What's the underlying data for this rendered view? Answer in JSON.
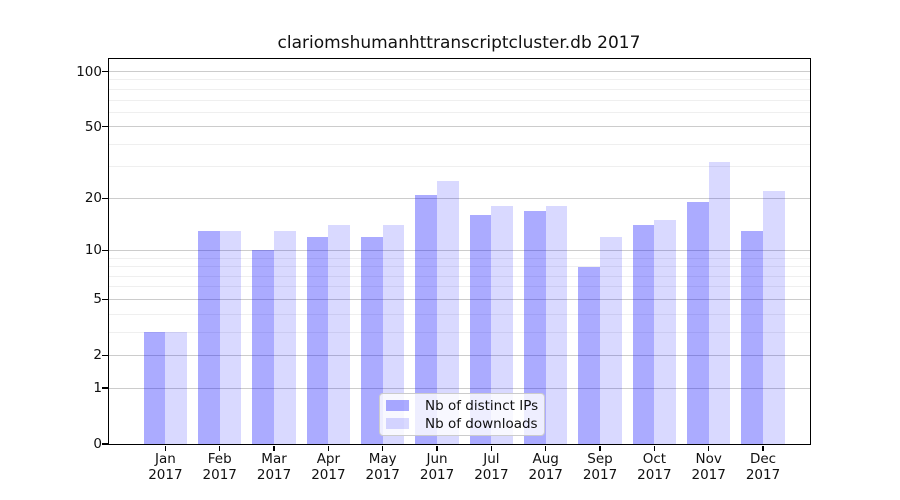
{
  "title": "clariomshumanhttranscriptcluster.db 2017",
  "chart_data": {
    "type": "bar",
    "title": "clariomshumanhttranscriptcluster.db 2017",
    "categories": [
      "Jan 2017",
      "Feb 2017",
      "Mar 2017",
      "Apr 2017",
      "May 2017",
      "Jun 2017",
      "Jul 2017",
      "Aug 2017",
      "Sep 2017",
      "Oct 2017",
      "Nov 2017",
      "Dec 2017"
    ],
    "series": [
      {
        "name": "Nb of distinct IPs",
        "color": "rgba(0,0,255,0.33)",
        "values": [
          3,
          13,
          10,
          12,
          12,
          21,
          16,
          17,
          8,
          14,
          19,
          13
        ]
      },
      {
        "name": "Nb of downloads",
        "color": "rgba(0,0,255,0.15)",
        "values": [
          3,
          13,
          13,
          14,
          14,
          25,
          18,
          18,
          12,
          15,
          32,
          22
        ]
      }
    ],
    "yscale": "log1p",
    "ylim": [
      0,
      118
    ],
    "yticks": [
      100,
      50,
      20,
      10,
      5,
      2,
      1,
      0
    ],
    "yticks_minor": [
      3,
      4,
      6,
      7,
      8,
      9,
      30,
      40,
      60,
      70,
      80,
      90
    ],
    "grid": true,
    "legend_position": "lower center",
    "xlabel": "",
    "ylabel": ""
  },
  "legend": {
    "items": [
      {
        "label": "Nb of distinct IPs"
      },
      {
        "label": "Nb of downloads"
      }
    ]
  }
}
